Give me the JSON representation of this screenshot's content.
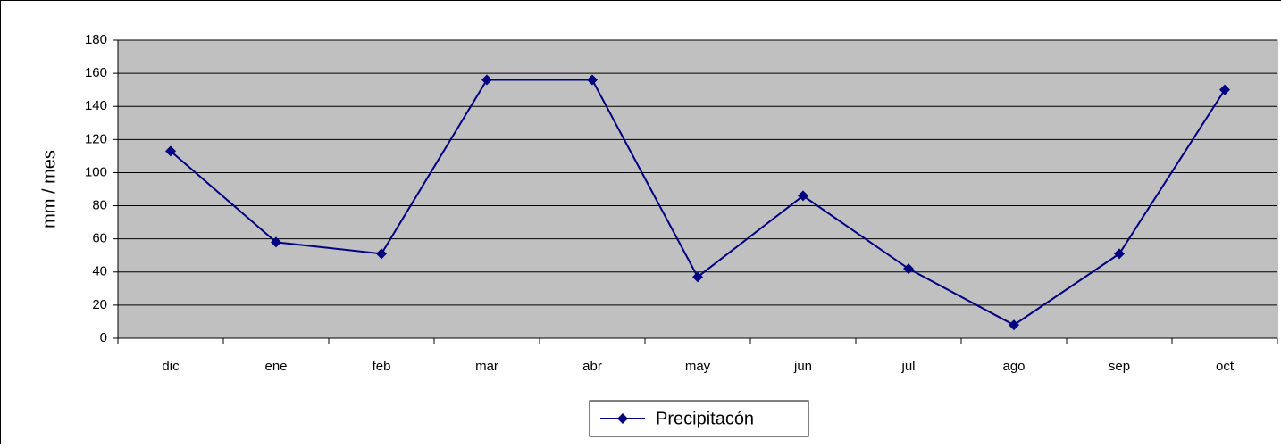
{
  "chart_data": {
    "type": "line",
    "y_label": "mm / mes",
    "categories": [
      "dic",
      "ene",
      "feb",
      "mar",
      "abr",
      "may",
      "jun",
      "jul",
      "ago",
      "sep",
      "oct"
    ],
    "series": [
      {
        "name": "Precipitacón",
        "color": "#000080",
        "values": [
          113,
          58,
          51,
          156,
          156,
          37,
          86,
          42,
          8,
          51,
          150
        ]
      }
    ],
    "ylim": [
      0,
      180
    ],
    "yticks": [
      0,
      20,
      40,
      60,
      80,
      100,
      120,
      140,
      160,
      180
    ],
    "grid": true,
    "legend": "bottom"
  }
}
